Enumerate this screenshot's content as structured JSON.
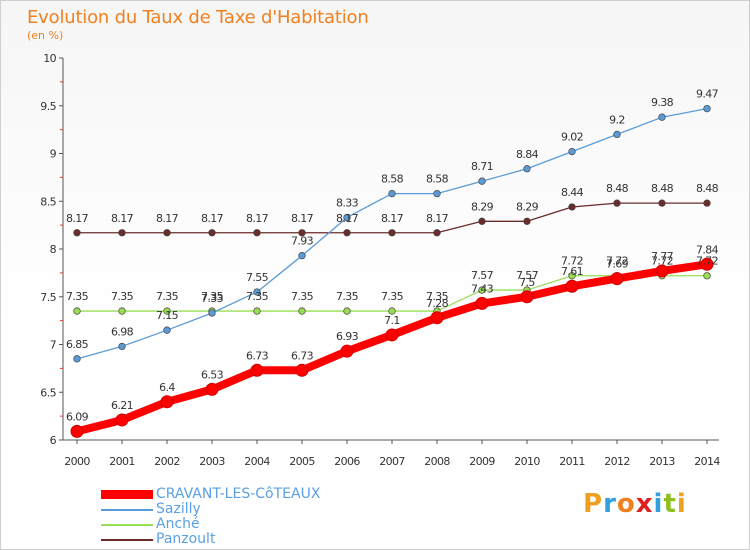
{
  "chart_data": {
    "type": "line",
    "title": "Evolution du Taux de Taxe d'Habitation",
    "subtitle": "(en %)",
    "x": [
      "2000",
      "2001",
      "2002",
      "2003",
      "2004",
      "2005",
      "2006",
      "2007",
      "2008",
      "2009",
      "2010",
      "2011",
      "2012",
      "2013",
      "2014"
    ],
    "ylim": [
      6,
      10
    ],
    "yticks": [
      "6",
      "6.5",
      "7",
      "7.5",
      "8",
      "8.5",
      "9",
      "9.5",
      "10"
    ],
    "grid": false,
    "legend_position": "bottom-left",
    "series": [
      {
        "name": "CRAVANT-LES-CôTEAUX",
        "color": "#ff0000",
        "values": [
          6.09,
          6.21,
          6.4,
          6.53,
          6.73,
          6.73,
          6.93,
          7.1,
          7.28,
          7.43,
          7.5,
          7.61,
          7.69,
          7.77,
          7.84
        ],
        "labels": [
          "6.09",
          "6.21",
          "6.4",
          "6.53",
          "6.73",
          "6.73",
          "6.93",
          "7.1",
          "7.28",
          "7.43",
          "7.5",
          "7.61",
          "7.69",
          "7.77",
          "7.84"
        ]
      },
      {
        "name": "Sazilly",
        "color": "#5b9bd5",
        "values": [
          6.85,
          6.98,
          7.15,
          7.33,
          7.55,
          7.93,
          8.33,
          8.58,
          8.58,
          8.71,
          8.84,
          9.02,
          9.2,
          9.38,
          9.47
        ],
        "labels": [
          "6.85",
          "6.98",
          "7.15",
          "7.33",
          "7.55",
          "7.93",
          "8.33",
          "8.58",
          "8.58",
          "8.71",
          "8.84",
          "9.02",
          "9.2",
          "9.38",
          "9.47"
        ]
      },
      {
        "name": "Anché",
        "color": "#99dd55",
        "values": [
          7.35,
          7.35,
          7.35,
          7.35,
          7.35,
          7.35,
          7.35,
          7.35,
          7.35,
          7.57,
          7.57,
          7.72,
          7.72,
          7.72,
          7.72
        ],
        "labels": [
          "7.35",
          "7.35",
          "7.35",
          "7.35",
          "7.35",
          "7.35",
          "7.35",
          "7.35",
          "7.35",
          "7.57",
          "7.57",
          "7.72",
          "7.72",
          "7.72",
          "7.72"
        ]
      },
      {
        "name": "Panzoult",
        "color": "#6b2c2c",
        "values": [
          8.17,
          8.17,
          8.17,
          8.17,
          8.17,
          8.17,
          8.17,
          8.17,
          8.17,
          8.29,
          8.29,
          8.44,
          8.48,
          8.48,
          8.48
        ],
        "labels": [
          "8.17",
          "8.17",
          "8.17",
          "8.17",
          "8.17",
          "8.17",
          "8.17",
          "8.17",
          "8.17",
          "8.29",
          "8.29",
          "8.44",
          "8.48",
          "8.48",
          "8.48"
        ]
      }
    ]
  },
  "brand": {
    "letters": [
      "P",
      "r",
      "o",
      "x",
      "i",
      "t",
      "i"
    ],
    "colors": [
      "#f0a020",
      "#30a0e0",
      "#f08020",
      "#e02020",
      "#30a0e0",
      "#90c020",
      "#f0a020"
    ]
  }
}
